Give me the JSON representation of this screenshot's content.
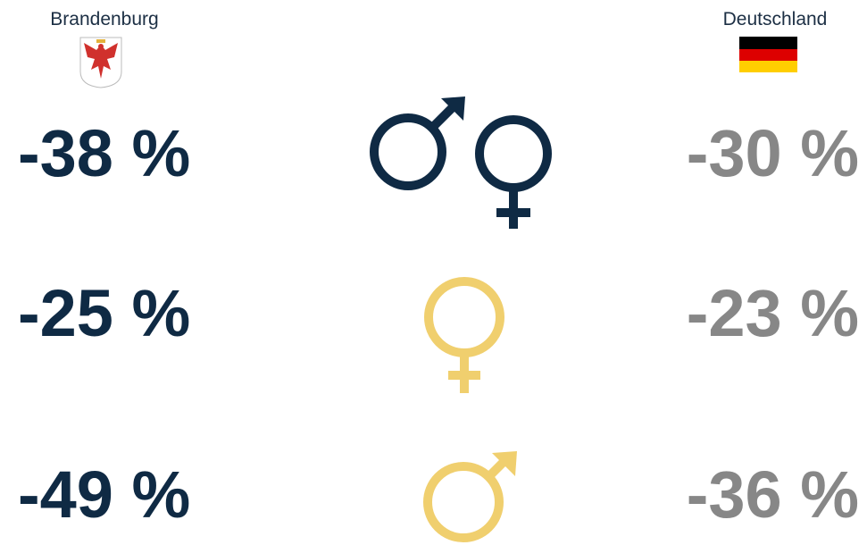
{
  "header": {
    "left": "Brandenburg",
    "right": "Deutschland"
  },
  "rows": [
    {
      "left": "-38 %",
      "right": "-30 %"
    },
    {
      "left": "-25 %",
      "right": "-23 %"
    },
    {
      "left": "-49 %",
      "right": "-36 %"
    }
  ]
}
